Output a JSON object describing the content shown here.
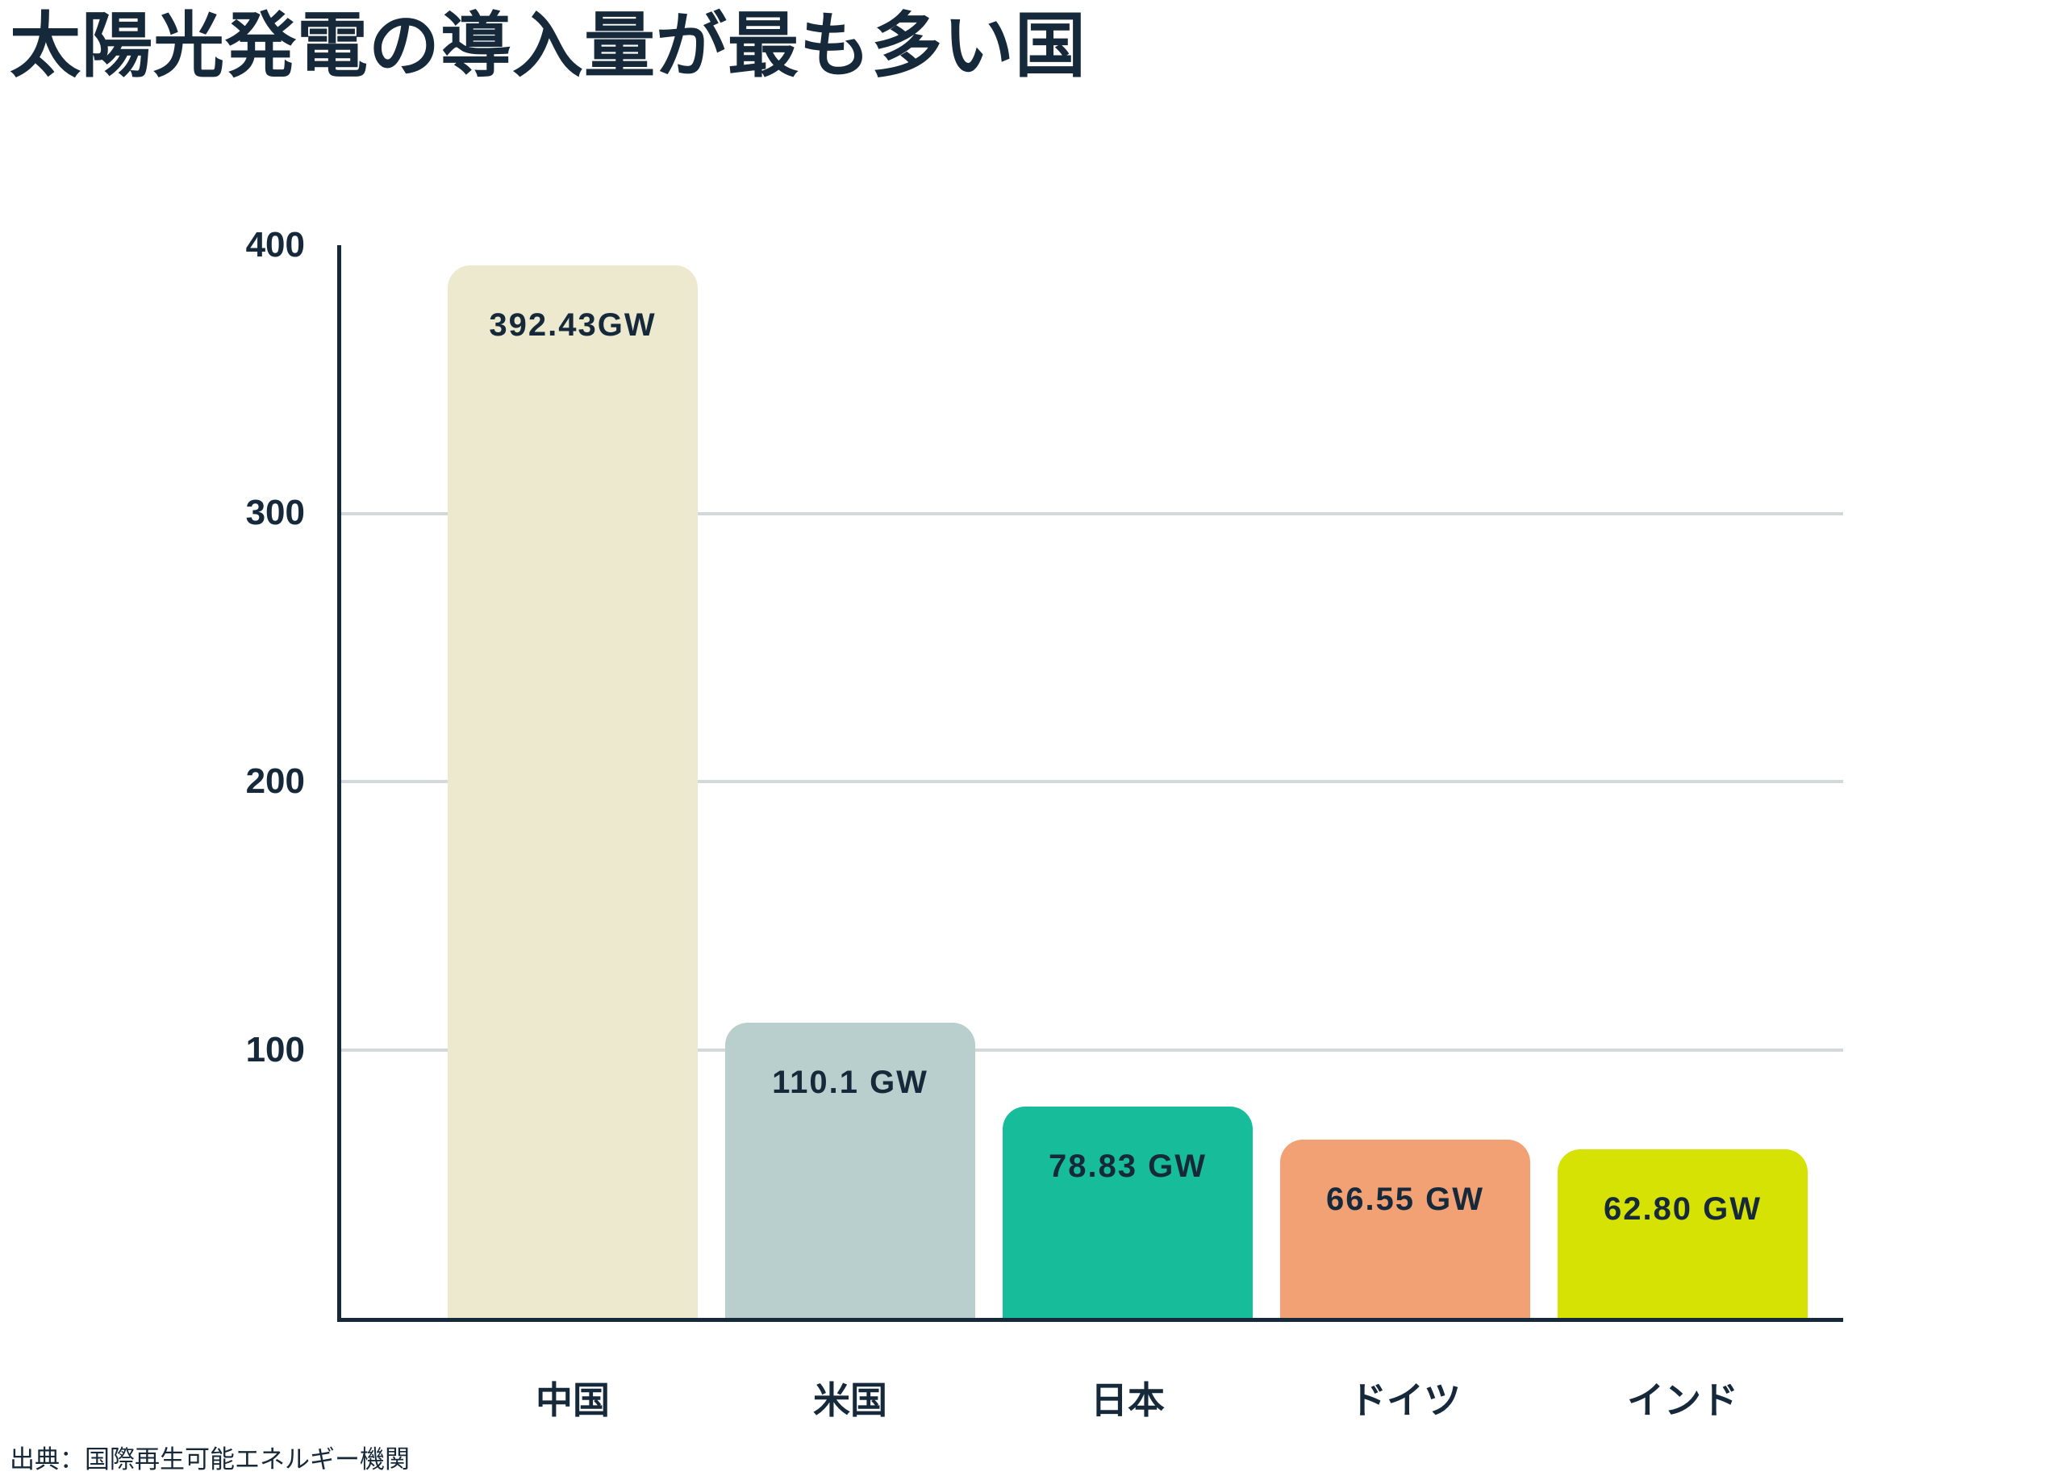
{
  "title": "太陽光発電の導入量が最も多い国",
  "source": "出典：国際再生可能エネルギー機関",
  "colors": {
    "text": "#16293a",
    "axis": "#16293a",
    "gridline": "#d3d8db",
    "background": "#ffffff"
  },
  "chart_data": {
    "type": "bar",
    "title": "太陽光発電の導入量が最も多い国",
    "categories": [
      "中国",
      "米国",
      "日本",
      "ドイツ",
      "インド"
    ],
    "values": [
      392.43,
      110.1,
      78.83,
      66.55,
      62.8
    ],
    "value_labels": [
      "392.43GW",
      "110.1 GW",
      "78.83 GW",
      "66.55 GW",
      "62.80 GW"
    ],
    "bar_colors": [
      "#ede9cf",
      "#b9cfcd",
      "#17bc9b",
      "#f2a175",
      "#d5e204"
    ],
    "unit": "GW",
    "xlabel": "",
    "ylabel": "",
    "ylim": [
      0,
      400
    ],
    "yticks": [
      "400",
      "300",
      "200",
      "100"
    ],
    "gridlines": [
      100,
      200,
      300
    ],
    "grid": "horizontal",
    "legend": "none",
    "source": "出典：国際再生可能エネルギー機関"
  }
}
